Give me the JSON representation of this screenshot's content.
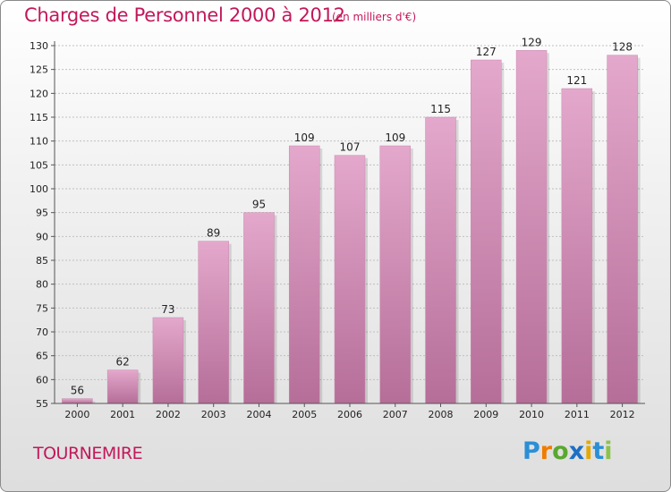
{
  "header": {
    "title": "Charges de Personnel 2000 à 2012",
    "subtitle": "(en milliers d'€)"
  },
  "footer": {
    "place": "TOURNEMIRE",
    "logo_letters": [
      "P",
      "r",
      "o",
      "x",
      "i",
      "t",
      "i"
    ],
    "logo_colors": [
      "#2a8fd6",
      "#f07c00",
      "#5aa82f",
      "#1d6fc4",
      "#e5a800",
      "#2a8fd6",
      "#8bc34a"
    ]
  },
  "colors": {
    "bar_top": "#e4a8cc",
    "bar_bottom": "#b56e98",
    "grid": "#c0c0c0",
    "axis": "#555555",
    "accent": "#c2185b"
  },
  "chart_data": {
    "type": "bar",
    "title": "Charges de Personnel 2000 à 2012",
    "subtitle": "(en milliers d'€)",
    "categories": [
      "2000",
      "2001",
      "2002",
      "2003",
      "2004",
      "2005",
      "2006",
      "2007",
      "2008",
      "2009",
      "2010",
      "2011",
      "2012"
    ],
    "values": [
      56,
      62,
      73,
      89,
      95,
      109,
      107,
      109,
      115,
      127,
      129,
      121,
      128
    ],
    "ylim": [
      55,
      130
    ],
    "yticks": [
      55,
      60,
      65,
      70,
      75,
      80,
      85,
      90,
      95,
      100,
      105,
      110,
      115,
      120,
      125,
      130
    ],
    "grid": true,
    "legend": "none"
  }
}
